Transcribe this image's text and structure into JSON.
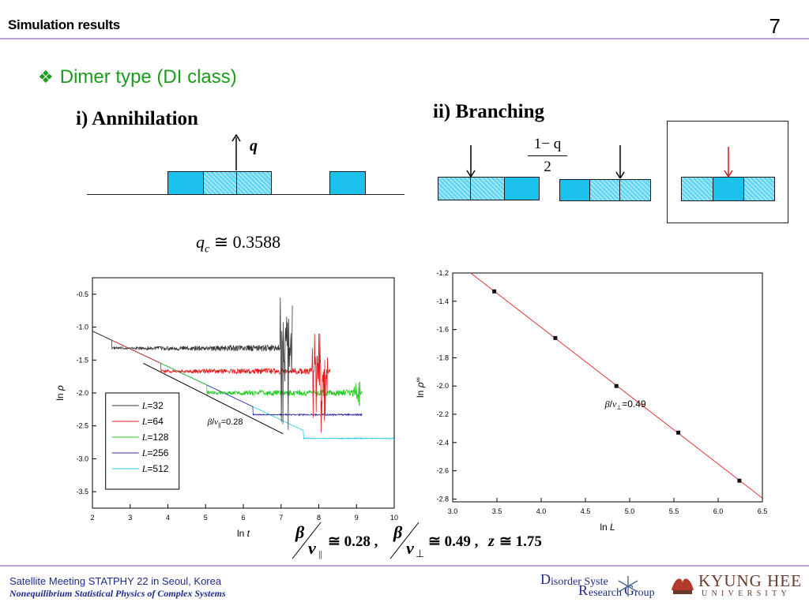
{
  "header": {
    "title": "Simulation results",
    "page_number": "7"
  },
  "section": {
    "bullet": "❖",
    "title": "Dimer type (DI class)"
  },
  "annihilation": {
    "label": "i) Annihilation",
    "rate_symbol": "q"
  },
  "branching": {
    "label": "ii) Branching",
    "rate_numerator": "1− q",
    "rate_denominator": "2"
  },
  "critical_point": {
    "symbol": "q",
    "subscript": "c",
    "relation": "≅",
    "value": "0.3588"
  },
  "chart_data": [
    {
      "type": "line",
      "title": "",
      "xlabel_prefix": "ln ",
      "xlabel_var": "t",
      "ylabel_prefix": "ln ",
      "ylabel_var": "ρ",
      "xlim": [
        2,
        10
      ],
      "ylim": [
        -3.75,
        -0.25
      ],
      "xticks": [
        "2",
        "3",
        "4",
        "5",
        "6",
        "7",
        "8",
        "9",
        "10"
      ],
      "yticks": [
        "-0.5",
        "-1.0",
        "-1.5",
        "-2.0",
        "-2.5",
        "-3.0",
        "-3.5"
      ],
      "grid": false,
      "legend_position": "bottom-left",
      "annotation": {
        "beta": "β",
        "slash": "/",
        "nu": "ν",
        "sub": "||",
        "value": "=0.28"
      },
      "guide_line": {
        "x": [
          3.35,
          7.05
        ],
        "y": [
          -1.55,
          -2.62
        ]
      },
      "series": [
        {
          "name_var": "L",
          "name_val": "=32",
          "color": "#333333",
          "x_end": 7.3,
          "plateau": -1.32,
          "noise": 0.06,
          "spike_x": [
            6.95,
            7.4
          ],
          "spike_lo": -2.75,
          "spike_hi": -0.55
        },
        {
          "name_var": "L",
          "name_val": "=64",
          "color": "#e01b1b",
          "x_end": 8.3,
          "plateau": -1.67,
          "noise": 0.05,
          "spike_x": [
            7.8,
            8.25
          ],
          "spike_lo": -3.45,
          "spike_hi": -1.1
        },
        {
          "name_var": "L",
          "name_val": "=128",
          "color": "#22cc22",
          "x_end": 9.15,
          "plateau": -2.0,
          "noise": 0.05,
          "spike_x": [
            8.9,
            9.15
          ],
          "spike_lo": -2.25,
          "spike_hi": -1.75
        },
        {
          "name_var": "L",
          "name_val": "=256",
          "color": "#2a2aa8",
          "x_end": 9.15,
          "plateau": -2.33,
          "noise": 0.012,
          "spike_x": null,
          "spike_lo": null,
          "spike_hi": null
        },
        {
          "name_var": "L",
          "name_val": "=512",
          "color": "#18c8e8",
          "x_end": 10.0,
          "plateau": -2.69,
          "noise": 0.008,
          "spike_x": null,
          "spike_lo": null,
          "spike_hi": null
        }
      ]
    },
    {
      "type": "scatter",
      "title": "",
      "xlabel_prefix": "ln ",
      "xlabel_var": "L",
      "ylabel_prefix": "ln ",
      "ylabel_var": "ρ",
      "ylabel_sub": "∞",
      "xlim": [
        3.0,
        6.5
      ],
      "ylim": [
        -2.82,
        -1.2
      ],
      "xticks": [
        "3.0",
        "3.5",
        "4.0",
        "4.5",
        "5.0",
        "5.5",
        "6.0",
        "6.5"
      ],
      "yticks": [
        "-1.2",
        "-1.4",
        "-1.6",
        "-1.8",
        "-2.0",
        "-2.2",
        "-2.4",
        "-2.6",
        "-2.8"
      ],
      "grid": false,
      "annotation": {
        "beta": "β",
        "slash": "/",
        "nu": "ν",
        "sub": "⊥",
        "value": "=0.49"
      },
      "x": [
        3.47,
        4.16,
        4.85,
        5.55,
        6.24
      ],
      "y": [
        -1.33,
        -1.66,
        -2.0,
        -2.33,
        -2.67
      ],
      "fit_color": "#e02020"
    }
  ],
  "exponents": {
    "beta": "β",
    "nu": "ν",
    "sub_par": "||",
    "sub_perp": "⊥",
    "val1": "≅ 0.28 ,",
    "val2": "≅ 0.49 ,",
    "z_sym": "z",
    "z_val": "≅ 1.75"
  },
  "footer": {
    "line1": "Satellite Meeting STATPHY 22 in Seoul, Korea",
    "line2": "Nonequilibrium Statistical Physics of Complex Systems"
  },
  "logos": {
    "drg_word1": "isorder Syste",
    "drg_word2": "esearch",
    "drg_word3": "roup",
    "khu_name": "KYUNG HEE",
    "khu_sub": "UNIVERSITY"
  },
  "colors": {
    "section_green": "#1b9c1b",
    "header_rule": "#b9a2d6",
    "cell_blue": "#1cc2ec",
    "footer_blue": "#1f2a8a"
  }
}
